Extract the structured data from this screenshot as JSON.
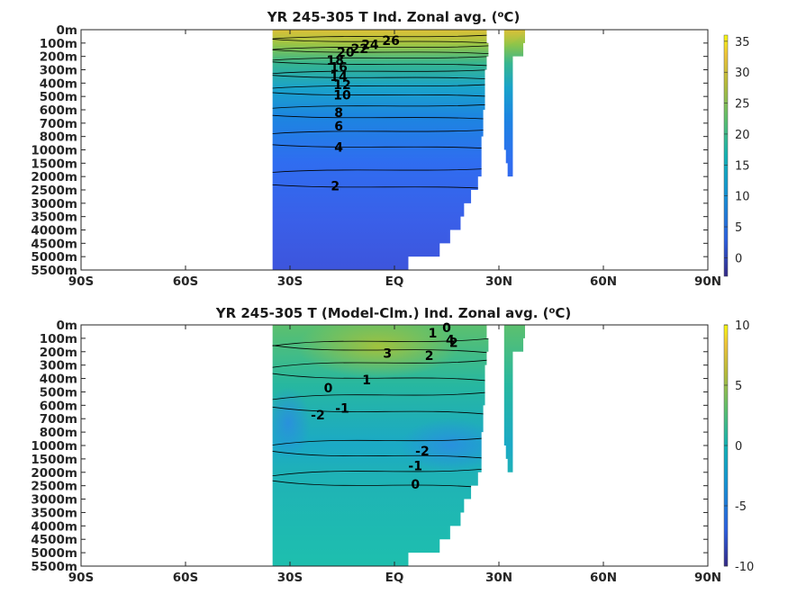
{
  "chart_data": [
    {
      "type": "heatmap",
      "title_prefix": "YR 245-305 T Ind. Zonal avg. (",
      "title_unit_base": "C",
      "title_unit_sup": "o",
      "title_suffix": ")",
      "x_ticks": [
        "90S",
        "60S",
        "30S",
        "EQ",
        "30N",
        "60N",
        "90N"
      ],
      "x_tick_values": [
        -90,
        -60,
        -30,
        0,
        30,
        60,
        90
      ],
      "xlim": [
        -90,
        90
      ],
      "y_ticks": [
        "0m",
        "100m",
        "200m",
        "300m",
        "400m",
        "500m",
        "600m",
        "700m",
        "800m",
        "1000m",
        "1500m",
        "2000m",
        "2500m",
        "3000m",
        "3500m",
        "4000m",
        "4500m",
        "5000m",
        "5500m"
      ],
      "colorbar_ticks": [
        35,
        30,
        25,
        20,
        15,
        10,
        5,
        0
      ],
      "colorbar_range": [
        -3,
        36
      ],
      "colormap": "parula",
      "contour_labels": [
        {
          "text": "26",
          "lat": -1,
          "depth_index": 0.8
        },
        {
          "text": "24",
          "lat": -7,
          "depth_index": 1.1
        },
        {
          "text": "22",
          "lat": -10,
          "depth_index": 1.4
        },
        {
          "text": "20",
          "lat": -14,
          "depth_index": 1.7
        },
        {
          "text": "18",
          "lat": -17,
          "depth_index": 2.3
        },
        {
          "text": "16",
          "lat": -16,
          "depth_index": 2.8
        },
        {
          "text": "14",
          "lat": -16,
          "depth_index": 3.5
        },
        {
          "text": "12",
          "lat": -15,
          "depth_index": 4.1
        },
        {
          "text": "10",
          "lat": -15,
          "depth_index": 4.9
        },
        {
          "text": "8",
          "lat": -16,
          "depth_index": 6.2
        },
        {
          "text": "6",
          "lat": -16,
          "depth_index": 7.2
        },
        {
          "text": "4",
          "lat": -16,
          "depth_index": 8.8
        },
        {
          "text": "2",
          "lat": -17,
          "depth_index": 11.7
        }
      ]
    },
    {
      "type": "heatmap",
      "title_prefix": "YR 245-305 T (Model-Clm.) Ind. Zonal avg. (",
      "title_unit_base": "C",
      "title_unit_sup": "o",
      "title_suffix": ")",
      "x_ticks": [
        "90S",
        "60S",
        "30S",
        "EQ",
        "30N",
        "60N",
        "90N"
      ],
      "x_tick_values": [
        -90,
        -60,
        -30,
        0,
        30,
        60,
        90
      ],
      "xlim": [
        -90,
        90
      ],
      "y_ticks": [
        "0m",
        "100m",
        "200m",
        "300m",
        "400m",
        "500m",
        "600m",
        "700m",
        "800m",
        "1000m",
        "1500m",
        "2000m",
        "2500m",
        "3000m",
        "3500m",
        "4000m",
        "4500m",
        "5000m",
        "5500m"
      ],
      "colorbar_ticks": [
        10,
        5,
        0,
        -5,
        -10
      ],
      "colorbar_range": [
        -10,
        10
      ],
      "colormap": "parula",
      "contour_labels": [
        {
          "text": "0",
          "lat": 15,
          "depth_index": 0.2
        },
        {
          "text": "1",
          "lat": 11,
          "depth_index": 0.6
        },
        {
          "text": "4",
          "lat": 16,
          "depth_index": 1.1
        },
        {
          "text": "2",
          "lat": 17,
          "depth_index": 1.3
        },
        {
          "text": "3",
          "lat": -2,
          "depth_index": 2.1
        },
        {
          "text": "2",
          "lat": 10,
          "depth_index": 2.3
        },
        {
          "text": "1",
          "lat": -8,
          "depth_index": 4.1
        },
        {
          "text": "0",
          "lat": -19,
          "depth_index": 4.7
        },
        {
          "text": "-1",
          "lat": -15,
          "depth_index": 6.2
        },
        {
          "text": "-2",
          "lat": -22,
          "depth_index": 6.7
        },
        {
          "text": "-2",
          "lat": 8,
          "depth_index": 9.4
        },
        {
          "text": "-1",
          "lat": 6,
          "depth_index": 10.5
        },
        {
          "text": "0",
          "lat": 6,
          "depth_index": 11.9
        }
      ]
    }
  ]
}
